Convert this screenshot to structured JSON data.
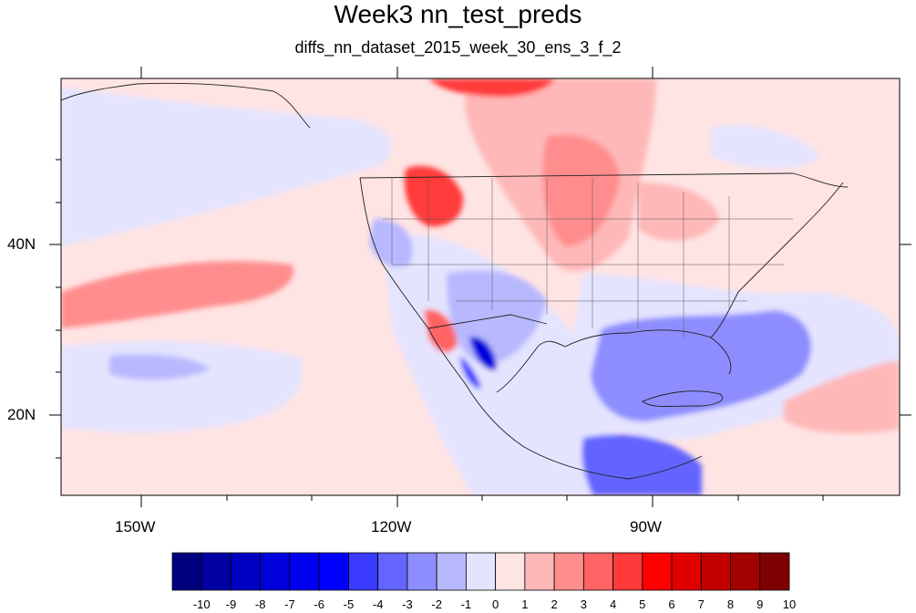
{
  "title": "Week3 nn_test_preds",
  "subtitle": "diffs_nn_dataset_2015_week_30_ens_3_f_2",
  "axes": {
    "lon_labels": [
      "150W",
      "120W",
      "90W"
    ],
    "lat_labels": [
      "40N",
      "20N"
    ]
  },
  "colorbar": {
    "labels": [
      "-10",
      "-9",
      "-8",
      "-7",
      "-6",
      "-5",
      "-4",
      "-3",
      "-2",
      "-1",
      "0",
      "1",
      "2",
      "3",
      "4",
      "5",
      "6",
      "7",
      "8",
      "9",
      "10"
    ],
    "colors": [
      "#00007f",
      "#0000a3",
      "#0000c2",
      "#0000dc",
      "#0000f0",
      "#0000ff",
      "#3a3aff",
      "#6464ff",
      "#8d8dff",
      "#b8b8ff",
      "#e4e4ff",
      "#ffe4e4",
      "#ffb8b8",
      "#ff8d8d",
      "#ff6464",
      "#ff3a3a",
      "#ff0000",
      "#e10000",
      "#c30000",
      "#a30000",
      "#7f0000"
    ]
  },
  "colors": {
    "background_positive": "#ffe4e4",
    "background_negative": "#e4e4ff"
  }
}
